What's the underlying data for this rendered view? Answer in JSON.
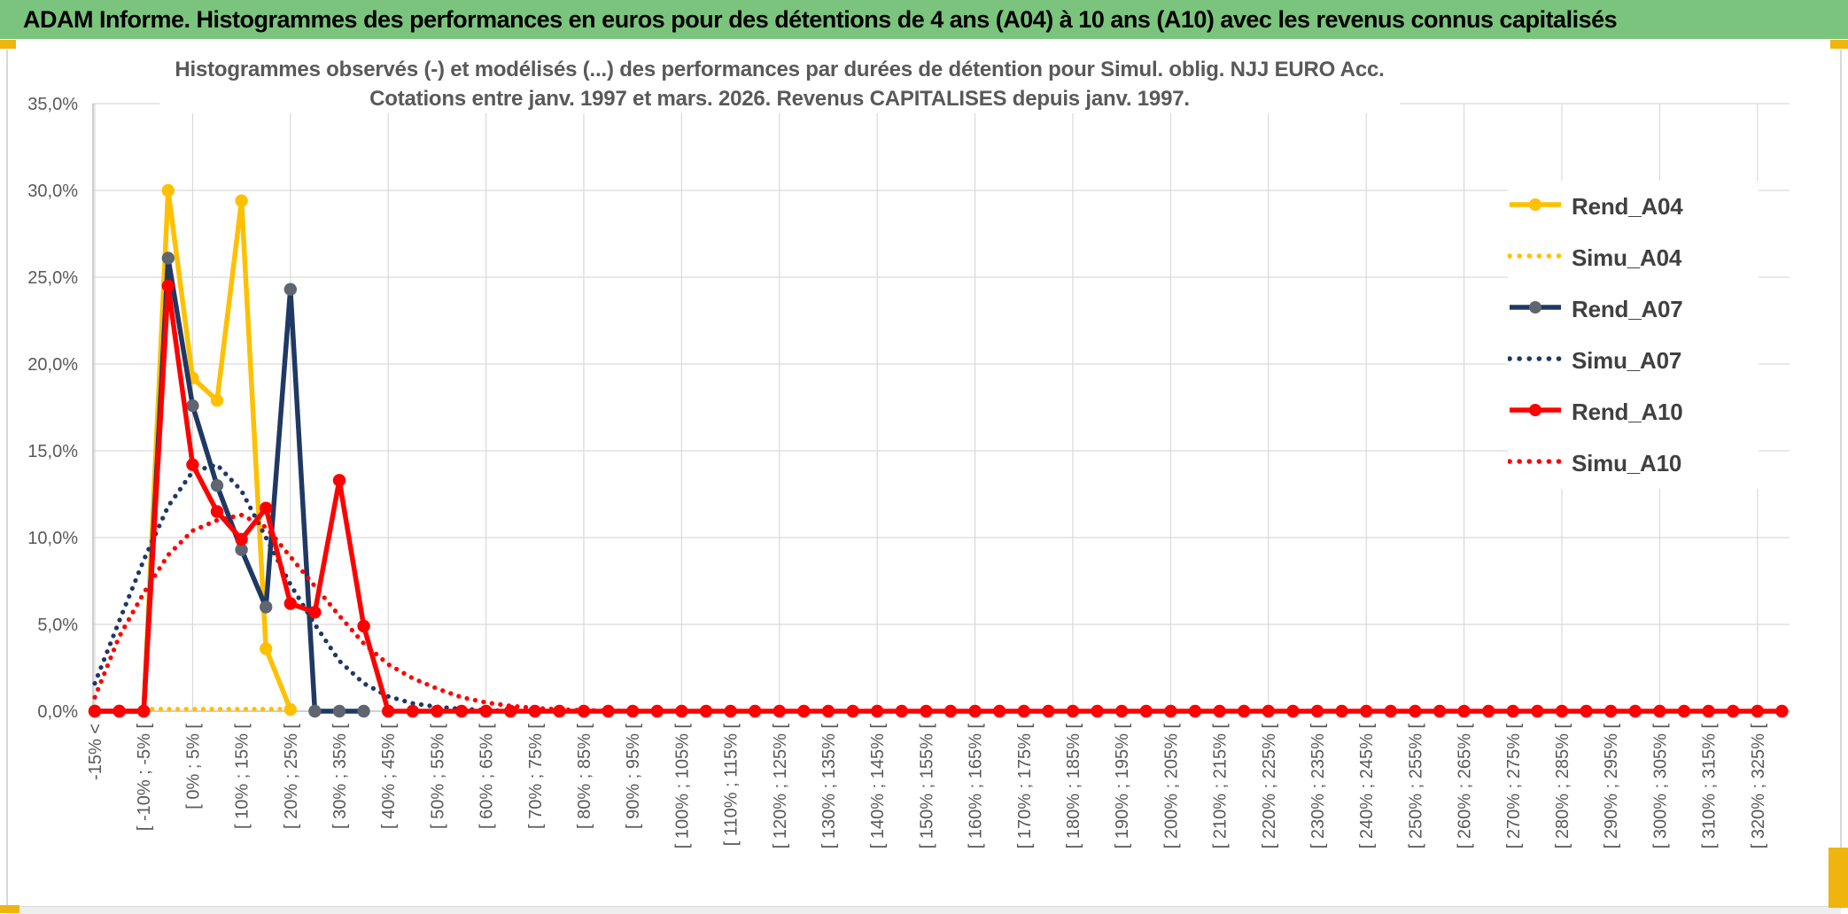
{
  "header": {
    "title": "ADAM Informe. Histogrammes des performances en euros pour des détentions de 4 ans (A04) à 10 ans (A10) avec les revenus connus capitalisés"
  },
  "chart_data": {
    "type": "line",
    "title": [
      "Histogrammes observés (-) et modélisés (...) des performances par durées de détention pour Simul. oblig. NJJ EURO Acc.",
      "Cotations entre janv. 1997 et mars. 2026. Revenus CAPITALISES depuis janv. 1997."
    ],
    "x_axis": {
      "total_bins": 70,
      "tick_every": 2,
      "tick_labels": [
        "-15% <",
        "[ -10% ; -5% [",
        "[ 0% ; 5% [",
        "[ 10% ; 15% [",
        "[ 20% ; 25% [",
        "[ 30% ; 35% [",
        "[ 40% ; 45% [",
        "[ 50% ; 55% [",
        "[ 60% ; 65% [",
        "[ 70% ; 75% [",
        "[ 80% ; 85% [",
        "[ 90% ; 95% [",
        "[ 100% ; 105% [",
        "[ 110% ; 115% [",
        "[ 120% ; 125% [",
        "[ 130% ; 135% [",
        "[ 140% ; 145% [",
        "[ 150% ; 155% [",
        "[ 160% ; 165% [",
        "[ 170% ; 175% [",
        "[ 180% ; 185% [",
        "[ 190% ; 195% [",
        "[ 200% ; 205% [",
        "[ 210% ; 215% [",
        "[ 220% ; 225% [",
        "[ 230% ; 235% [",
        "[ 240% ; 245% [",
        "[ 250% ; 255% [",
        "[ 260% ; 265% [",
        "[ 270% ; 275% [",
        "[ 280% ; 285% [",
        "[ 290% ; 295% [",
        "[ 300% ; 305% [",
        "[ 310% ; 315% [",
        "[ 320% ; 325% ["
      ]
    },
    "y_axis": {
      "min": 0,
      "max": 35,
      "step": 5,
      "tick_labels": [
        "0,0%",
        "5,0%",
        "10,0%",
        "15,0%",
        "20,0%",
        "25,0%",
        "30,0%",
        "35,0%"
      ]
    },
    "grid": {
      "h_step_percent": 5,
      "v_every_bins": 4,
      "grid_on": true
    },
    "legend_position": "right-inside",
    "series": [
      {
        "name": "Rend_A04",
        "color": "#FFC000",
        "style": "solid",
        "marker": "#FFC000",
        "start": 0,
        "values": [
          0,
          0,
          0,
          30.0,
          19.2,
          17.9,
          29.4,
          3.6,
          0.1
        ]
      },
      {
        "name": "Simu_A04",
        "color": "#FFC000",
        "style": "dotted",
        "start": 2,
        "values": [
          0.12,
          0.12,
          0.12,
          0.12,
          0.12,
          0.12,
          0.12
        ]
      },
      {
        "name": "Rend_A07",
        "color": "#1F3864",
        "style": "solid",
        "marker": "#5F6670",
        "start": 0,
        "values": [
          0,
          0,
          0,
          26.1,
          17.6,
          13.0,
          9.3,
          6.0,
          24.3,
          0,
          0,
          0
        ]
      },
      {
        "name": "Simu_A07",
        "color": "#1F3864",
        "style": "dotted",
        "start": 0,
        "values": [
          1.6,
          5.2,
          8.7,
          11.8,
          13.8,
          14.2,
          12.7,
          10.0,
          7.3,
          5.0,
          2.9,
          1.6,
          0.85,
          0.45,
          0.25,
          0.12,
          0.06,
          0
        ]
      },
      {
        "name": "Rend_A10",
        "color": "#FF0000",
        "style": "solid",
        "marker": "#FF0000",
        "start": 0,
        "values": [
          0,
          0,
          0,
          24.5,
          14.2,
          11.5,
          9.9,
          11.7,
          6.2,
          5.7,
          13.3,
          4.9,
          0
        ],
        "extend_zero_to_last_bin": true
      },
      {
        "name": "Simu_A10",
        "color": "#FF0000",
        "style": "dotted",
        "start": 0,
        "values": [
          0.8,
          4.3,
          6.8,
          9.0,
          10.4,
          11.0,
          11.3,
          10.6,
          8.9,
          7.2,
          5.5,
          3.9,
          2.7,
          1.9,
          1.3,
          0.8,
          0.5,
          0.3,
          0.18,
          0.1,
          0.05,
          0.03,
          0
        ],
        "extend_zero_to_last_bin": true
      }
    ]
  },
  "legend": {
    "items": [
      {
        "label": "Rend_A04",
        "color": "#FFC000",
        "style": "solid",
        "marker": "#FFC000"
      },
      {
        "label": "Simu_A04",
        "color": "#FFC000",
        "style": "dotted"
      },
      {
        "label": "Rend_A07",
        "color": "#1F3864",
        "style": "solid",
        "marker": "#5F6670"
      },
      {
        "label": "Simu_A07",
        "color": "#1F3864",
        "style": "dotted"
      },
      {
        "label": "Rend_A10",
        "color": "#FF0000",
        "style": "solid",
        "marker": "#FF0000"
      },
      {
        "label": "Simu_A10",
        "color": "#FF0000",
        "style": "dotted"
      }
    ]
  },
  "colors": {
    "header_background": "#7BC47D",
    "accent_gold": "#EFB50E",
    "gridline": "#D9D9D9",
    "axis_text": "#595959",
    "series_gold": "#FFC000",
    "series_navy": "#1F3864",
    "series_red": "#FF0000",
    "gray_marker": "#5F6670"
  }
}
